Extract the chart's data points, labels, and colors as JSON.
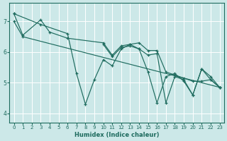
{
  "xlabel": "Humidex (Indice chaleur)",
  "bg_color": "#cce8e8",
  "grid_color": "#ffffff",
  "line_color": "#1e6b5e",
  "xlim": [
    -0.5,
    23.5
  ],
  "ylim": [
    3.7,
    7.6
  ],
  "yticks": [
    4,
    5,
    6,
    7
  ],
  "xticks": [
    0,
    1,
    2,
    3,
    4,
    5,
    6,
    7,
    8,
    9,
    10,
    11,
    12,
    13,
    14,
    15,
    16,
    17,
    18,
    19,
    20,
    21,
    22,
    23
  ],
  "lines": [
    {
      "x": [
        0,
        1,
        3,
        4,
        6,
        10,
        11,
        12,
        13,
        14,
        15,
        16,
        17,
        18,
        19,
        20,
        21,
        22,
        23
      ],
      "y": [
        7.25,
        6.55,
        7.05,
        6.65,
        6.45,
        6.3,
        5.9,
        6.2,
        6.25,
        6.3,
        6.05,
        6.05,
        5.35,
        5.25,
        5.15,
        5.05,
        5.05,
        5.1,
        4.85
      ]
    },
    {
      "x": [
        0,
        1,
        23
      ],
      "y": [
        7.0,
        6.5,
        4.85
      ]
    },
    {
      "x": [
        0,
        3,
        6,
        7,
        8,
        9,
        10,
        11,
        12,
        13,
        14,
        15,
        16,
        17,
        18,
        19,
        20,
        21,
        22,
        23
      ],
      "y": [
        7.25,
        6.9,
        6.6,
        5.3,
        4.3,
        5.1,
        5.75,
        5.55,
        6.1,
        6.25,
        6.1,
        5.35,
        4.35,
        5.2,
        5.3,
        5.05,
        4.6,
        5.45,
        5.1,
        4.85
      ]
    },
    {
      "x": [
        10,
        11,
        12,
        13,
        14,
        15,
        16,
        17,
        18,
        19,
        20,
        21,
        22,
        23
      ],
      "y": [
        6.25,
        5.85,
        6.15,
        6.2,
        6.1,
        5.9,
        5.95,
        4.35,
        5.2,
        5.1,
        4.6,
        5.45,
        5.2,
        4.85
      ]
    }
  ]
}
